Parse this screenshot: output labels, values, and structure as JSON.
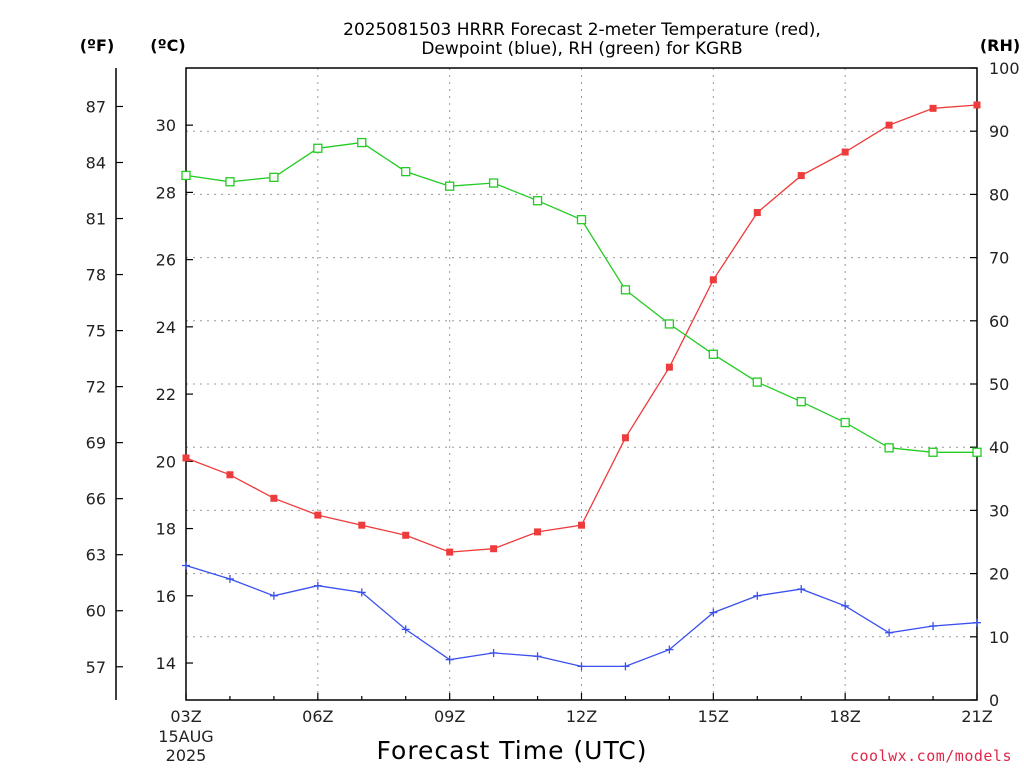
{
  "chart_data": {
    "type": "line",
    "title_lines": [
      "2025081503 HRRR Forecast 2-meter Temperature (red),",
      "Dewpoint (blue), RH (green) for KGRB"
    ],
    "units": {
      "fahrenheit": "(ºF)",
      "celsius": "(ºC)",
      "rh": "(RH)"
    },
    "xlabel": "Forecast Time (UTC)",
    "credit": "coolwx.com/models",
    "x_categories": [
      "03Z",
      "04Z",
      "05Z",
      "06Z",
      "07Z",
      "08Z",
      "09Z",
      "10Z",
      "11Z",
      "12Z",
      "13Z",
      "14Z",
      "15Z",
      "16Z",
      "17Z",
      "18Z",
      "19Z",
      "20Z",
      "21Z"
    ],
    "x_tick_labels": [
      "03Z",
      "06Z",
      "09Z",
      "12Z",
      "15Z",
      "18Z",
      "21Z"
    ],
    "x_date_labels": [
      "15AUG",
      "2025"
    ],
    "celsius_axis": {
      "range": [
        12.9,
        31.7
      ],
      "ticks": [
        14,
        16,
        18,
        20,
        22,
        24,
        26,
        28,
        30
      ]
    },
    "fahrenheit_axis": {
      "ticks": [
        57,
        60,
        63,
        66,
        69,
        72,
        75,
        78,
        81,
        84,
        87
      ]
    },
    "rh_axis": {
      "range": [
        0,
        100
      ],
      "ticks": [
        0,
        10,
        20,
        30,
        40,
        50,
        60,
        70,
        80,
        90,
        100
      ]
    },
    "grid": true,
    "series": [
      {
        "name": "Temperature",
        "axis": "celsius",
        "color": "#ee3b3b",
        "marker": "filled-square",
        "values": [
          20.1,
          19.6,
          18.9,
          18.4,
          18.1,
          17.8,
          17.3,
          17.4,
          17.9,
          18.1,
          20.7,
          22.8,
          25.4,
          27.4,
          28.5,
          29.2,
          30.0,
          30.5,
          30.6
        ]
      },
      {
        "name": "Dewpoint",
        "axis": "celsius",
        "color": "#3a50ee",
        "marker": "plus",
        "values": [
          16.9,
          16.5,
          16.0,
          16.3,
          16.1,
          15.0,
          14.1,
          14.3,
          14.2,
          13.9,
          13.9,
          14.4,
          15.5,
          16.0,
          16.2,
          15.7,
          14.9,
          15.1,
          15.2
        ]
      },
      {
        "name": "RH",
        "axis": "rh",
        "color": "#22cc22",
        "marker": "open-square",
        "values": [
          83,
          82,
          82.7,
          87.3,
          88.2,
          83.6,
          81.3,
          81.8,
          79,
          76,
          64.9,
          59.5,
          54.7,
          50.3,
          47.2,
          43.9,
          39.9,
          39.2,
          39.2
        ]
      }
    ]
  }
}
